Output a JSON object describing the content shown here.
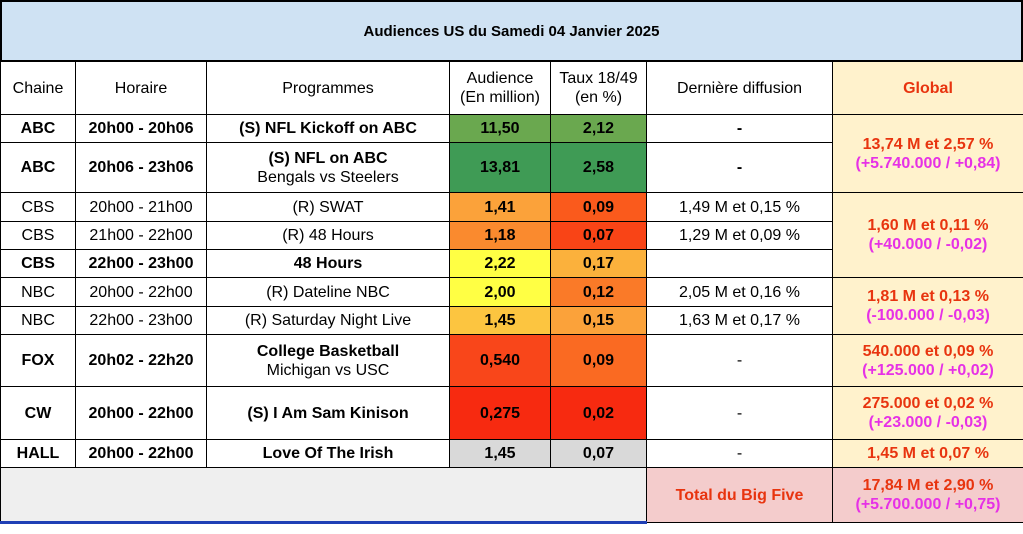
{
  "title": "Audiences US du Samedi 04 Janvier 2025",
  "headers": {
    "chaine": "Chaine",
    "horaire": "Horaire",
    "programmes": "Programmes",
    "audience_1": "Audience",
    "audience_2": "(En million)",
    "taux_1": "Taux 18/49",
    "taux_2": "(en %)",
    "derniere": "Dernière diffusion",
    "global": "Global"
  },
  "rows": [
    {
      "chaine": "ABC",
      "horaire": "20h00 - 20h06",
      "prog": "(S) NFL Kickoff on ABC",
      "prog2": "",
      "audience": "11,50",
      "taux": "2,12",
      "derniere": "-",
      "aud_color": "#6aa84f",
      "taux_color": "#6aa84f"
    },
    {
      "chaine": "ABC",
      "horaire": "20h06 - 23h06",
      "prog": "(S) NFL on ABC",
      "prog2": "Bengals vs Steelers",
      "audience": "13,81",
      "taux": "2,58",
      "derniere": "-",
      "aud_color": "#3f9b55",
      "taux_color": "#3f9b55"
    },
    {
      "chaine": "CBS",
      "horaire": "20h00 - 21h00",
      "prog": "(R) SWAT",
      "prog2": "",
      "audience": "1,41",
      "taux": "0,09",
      "derniere": "1,49 M et 0,15 %",
      "aud_color": "#fba23a",
      "taux_color": "#fa5a1c"
    },
    {
      "chaine": "CBS",
      "horaire": "21h00 - 22h00",
      "prog": "(R) 48 Hours",
      "prog2": "",
      "audience": "1,18",
      "taux": "0,07",
      "derniere": "1,29 M et 0,09 %",
      "aud_color": "#fa8a2e",
      "taux_color": "#f94416"
    },
    {
      "chaine": "CBS",
      "horaire": "22h00 - 23h00",
      "prog": "48 Hours",
      "prog2": "",
      "audience": "2,22",
      "taux": "0,17",
      "derniere": "",
      "aud_color": "#ffff44",
      "taux_color": "#fbb13c"
    },
    {
      "chaine": "NBC",
      "horaire": "20h00 - 22h00",
      "prog": "(R) Dateline NBC",
      "prog2": "",
      "audience": "2,00",
      "taux": "0,12",
      "derniere": "2,05 M et 0,16 %",
      "aud_color": "#ffff44",
      "taux_color": "#fa7a28"
    },
    {
      "chaine": "NBC",
      "horaire": "22h00 - 23h00",
      "prog": "(R) Saturday Night Live",
      "prog2": "",
      "audience": "1,45",
      "taux": "0,15",
      "derniere": "1,63 M et 0,17 %",
      "aud_color": "#fcc540",
      "taux_color": "#fba23a"
    },
    {
      "chaine": "FOX",
      "horaire": "20h02 - 22h20",
      "prog": "College Basketball",
      "prog2": "Michigan vs USC",
      "audience": "0,540",
      "taux": "0,09",
      "derniere": "-",
      "aud_color": "#f9461a",
      "taux_color": "#fa6a22"
    },
    {
      "chaine": "CW",
      "horaire": "20h00 - 22h00",
      "prog": "(S) I Am Sam Kinison",
      "prog2": "",
      "audience": "0,275",
      "taux": "0,02",
      "derniere": "-",
      "aud_color": "#f72a10",
      "taux_color": "#f72a10"
    },
    {
      "chaine": "HALL",
      "horaire": "20h00 - 22h00",
      "prog": "Love Of The Irish",
      "prog2": "",
      "audience": "1,45",
      "taux": "0,07",
      "derniere": "-",
      "aud_color": "#d9d9d9",
      "taux_color": "#d9d9d9"
    }
  ],
  "globals": {
    "abc_1": "13,74 M et 2,57 %",
    "abc_2": "(+5.740.000 / +0,84)",
    "cbs_1": "1,60 M et 0,11 %",
    "cbs_2": "(+40.000 / -0,02)",
    "nbc_1": "1,81 M et 0,13 %",
    "nbc_2": "(-100.000 / -0,03)",
    "fox_1": "540.000 et 0,09 %",
    "fox_2": "(+125.000 / +0,02)",
    "cw_1": "275.000 et 0,02 %",
    "cw_2": "(+23.000 / -0,03)",
    "hall_1": "1,45 M et 0,07 %"
  },
  "footer": {
    "label": "Total du Big Five",
    "total_1": "17,84 M et 2,90 %",
    "total_2": "(+5.700.000 / +0,75)"
  },
  "colors": {
    "title_bg": "#cfe2f3",
    "global_bg": "#fff2cc",
    "global_red": "#e8340f",
    "global_pink": "#e631e6",
    "footer_bg": "#f4cccc"
  }
}
